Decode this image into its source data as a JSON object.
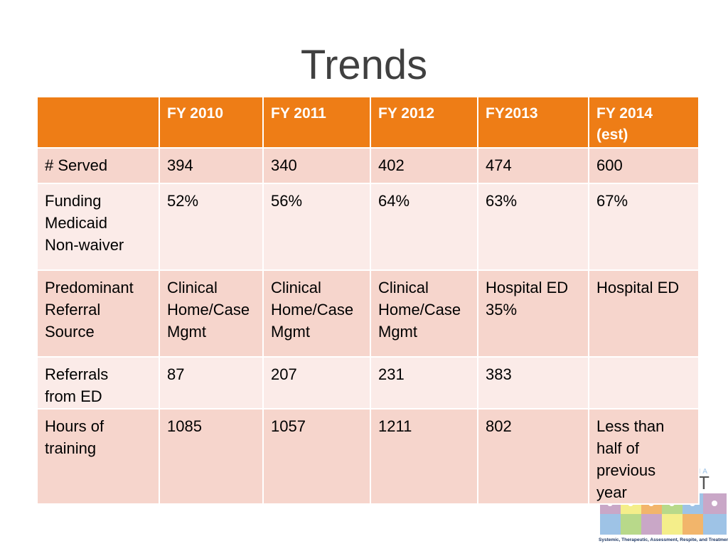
{
  "slide": {
    "title": "Trends"
  },
  "table": {
    "columns": [
      "",
      "FY 2010",
      "FY 2011",
      "FY 2012",
      "FY2013",
      "FY 2014\n(est)"
    ],
    "rows": [
      {
        "label": "# Served",
        "values": [
          "394",
          "340",
          "402",
          "474",
          "600"
        ]
      },
      {
        "label": "Funding\nMedicaid\nNon-waiver",
        "values": [
          "52%",
          "56%",
          "64%",
          "63%",
          "67%"
        ]
      },
      {
        "label": "Predominant\nReferral\nSource",
        "values": [
          "Clinical\nHome/Case\nMgmt",
          "Clinical\nHome/Case\nMgmt",
          "Clinical\nHome/Case\nMgmt",
          "Hospital ED\n35%",
          "Hospital ED"
        ]
      },
      {
        "label": "Referrals\nfrom ED",
        "values": [
          "87",
          "207",
          "231",
          "383",
          ""
        ]
      },
      {
        "label": "Hours of\ntraining",
        "values": [
          "1085",
          "1057",
          "1211",
          "802",
          "Less than\nhalf of\nprevious\nyear"
        ]
      }
    ]
  },
  "logo": {
    "letters": "NA",
    "big_letter": "T",
    "tagline": "Systemic, Therapeutic, Assessment, Respite, and Treatment",
    "colors": [
      "#c9a7c7",
      "#f4ee8a",
      "#f2b56b",
      "#b8d98a",
      "#9ec3e6",
      "#c9a7c7"
    ]
  },
  "colors": {
    "header": "#ee7d16",
    "row_even": "#f6d5cc",
    "row_odd": "#fbebe8"
  }
}
